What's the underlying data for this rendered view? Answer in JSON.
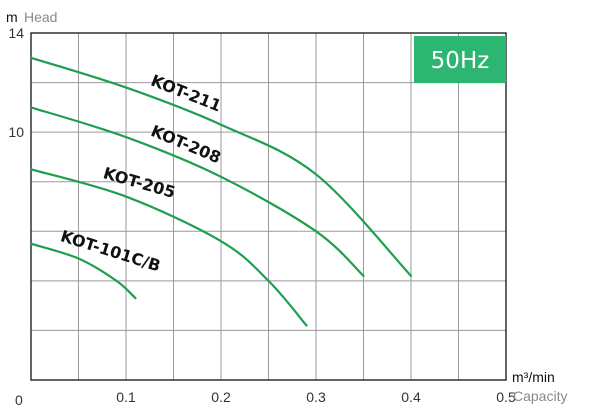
{
  "chart_data": {
    "type": "line",
    "title": "",
    "frequency_badge": {
      "text": "50Hz",
      "color": "#2db572"
    },
    "xlabel": {
      "unit": "m³/min",
      "name": "Capacity"
    },
    "ylabel": {
      "unit": "m",
      "name": "Head"
    },
    "xlim": [
      0,
      0.5
    ],
    "ylim": [
      0,
      14
    ],
    "x_ticks": [
      "0.1",
      "0.2",
      "0.3",
      "0.4",
      "0.5"
    ],
    "y_ticks": [
      "10",
      "14"
    ],
    "origin_label": "0",
    "grid": true,
    "line_color": "#1e9e4f",
    "series": [
      {
        "name": "KOT-211",
        "x": [
          0,
          0.1,
          0.2,
          0.3,
          0.4
        ],
        "y": [
          13.0,
          11.8,
          10.3,
          8.3,
          4.2
        ]
      },
      {
        "name": "KOT-208",
        "x": [
          0,
          0.1,
          0.2,
          0.3,
          0.35
        ],
        "y": [
          11.0,
          9.8,
          8.2,
          6.0,
          4.2
        ]
      },
      {
        "name": "KOT-205",
        "x": [
          0,
          0.1,
          0.2,
          0.25,
          0.29
        ],
        "y": [
          8.5,
          7.4,
          5.6,
          4.0,
          2.2
        ]
      },
      {
        "name": "KOT-101C/B",
        "x": [
          0,
          0.05,
          0.09,
          0.11
        ],
        "y": [
          5.5,
          4.9,
          4.0,
          3.3
        ]
      }
    ]
  }
}
